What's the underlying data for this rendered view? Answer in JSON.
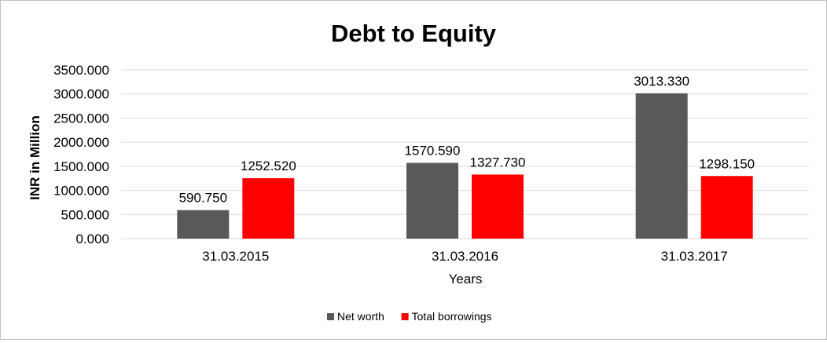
{
  "chart_data": {
    "type": "bar",
    "title": "Debt to Equity",
    "xlabel": "Years",
    "ylabel": "INR in Million",
    "categories": [
      "31.03.2015",
      "31.03.2016",
      "31.03.2017"
    ],
    "series": [
      {
        "name": "Net worth",
        "color": "#595959",
        "values": [
          590.75,
          1570.59,
          3013.33
        ],
        "labels": [
          "590.750",
          "1570.590",
          "3013.330"
        ]
      },
      {
        "name": "Total borrowings",
        "color": "#ff0000",
        "values": [
          1252.52,
          1327.73,
          1298.15
        ],
        "labels": [
          "1252.520",
          "1327.730",
          "1298.150"
        ]
      }
    ],
    "ylim": [
      0,
      3500
    ],
    "yticks": [
      "0.000",
      "500.000",
      "1000.000",
      "1500.000",
      "2000.000",
      "2500.000",
      "3000.000",
      "3500.000"
    ],
    "grid": true,
    "legend_position": "bottom"
  }
}
